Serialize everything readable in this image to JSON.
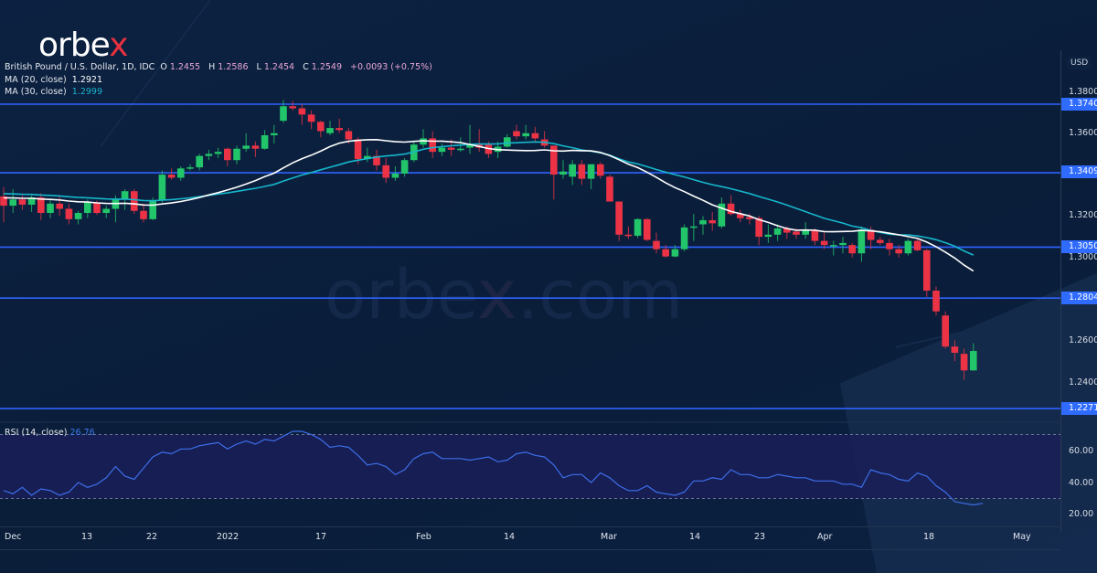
{
  "brand": {
    "logo_text_main": "orbe",
    "logo_text_accent": "x",
    "watermark": "orbex.com",
    "accent_color": "#e8313f"
  },
  "header": {
    "symbol": "British Pound / U.S. Dollar, 1D, IDC",
    "open_label": "O",
    "open": "1.2455",
    "high_label": "H",
    "high": "1.2586",
    "low_label": "L",
    "low": "1.2454",
    "close_label": "C",
    "close": "1.2549",
    "change": "+0.0093 (+0.75%)"
  },
  "indicators": {
    "ma20": {
      "label": "MA (20, close)",
      "value": "1.2921",
      "color": "#ffffff"
    },
    "ma30": {
      "label": "MA (30, close)",
      "value": "1.2999",
      "color": "#16b6cc"
    },
    "rsi": {
      "label": "RSI (14, close)",
      "value": "26.76",
      "color": "#3c6ee8"
    }
  },
  "price_axis": {
    "currency": "USD",
    "ticks": [
      "1.3800",
      "1.3600",
      "1.3200",
      "1.3000",
      "1.2600",
      "1.2400"
    ],
    "level_tags": [
      "1.3740",
      "1.3409",
      "1.3050",
      "1.2804",
      "1.2271"
    ]
  },
  "rsi_axis": {
    "ticks": [
      "60.00",
      "40.00",
      "20.00"
    ]
  },
  "time_axis": {
    "labels": [
      "Dec",
      "13",
      "22",
      "2022",
      "17",
      "Feb",
      "14",
      "Mar",
      "14",
      "23",
      "Apr",
      "18",
      "May"
    ]
  },
  "chart_data": {
    "type": "candlestick",
    "title": "British Pound / U.S. Dollar, 1D, IDC",
    "ylabel": "USD",
    "ylim": [
      1.215,
      1.39
    ],
    "horizontal_levels": [
      1.374,
      1.3409,
      1.305,
      1.2804,
      1.2271
    ],
    "x_labels": [
      "Dec",
      "13",
      "22",
      "2022",
      "17",
      "Feb",
      "14",
      "Mar",
      "14",
      "23",
      "Apr",
      "18",
      "May"
    ],
    "candles": [
      [
        1.3295,
        1.334,
        1.317,
        1.325
      ],
      [
        1.325,
        1.333,
        1.3215,
        1.328
      ],
      [
        1.328,
        1.33,
        1.323,
        1.3255
      ],
      [
        1.3255,
        1.33,
        1.322,
        1.329
      ],
      [
        1.329,
        1.331,
        1.318,
        1.3215
      ],
      [
        1.3215,
        1.328,
        1.319,
        1.326
      ],
      [
        1.326,
        1.3295,
        1.32,
        1.3235
      ],
      [
        1.3235,
        1.326,
        1.316,
        1.3185
      ],
      [
        1.3185,
        1.3225,
        1.316,
        1.3215
      ],
      [
        1.3215,
        1.328,
        1.319,
        1.3265
      ],
      [
        1.3265,
        1.3275,
        1.3205,
        1.3215
      ],
      [
        1.3215,
        1.325,
        1.319,
        1.3235
      ],
      [
        1.3235,
        1.33,
        1.317,
        1.328
      ],
      [
        1.328,
        1.333,
        1.323,
        1.332
      ],
      [
        1.332,
        1.333,
        1.321,
        1.3225
      ],
      [
        1.3225,
        1.326,
        1.317,
        1.3185
      ],
      [
        1.3185,
        1.329,
        1.318,
        1.3275
      ],
      [
        1.3275,
        1.342,
        1.3265,
        1.34
      ],
      [
        1.34,
        1.343,
        1.3375,
        1.3385
      ],
      [
        1.3385,
        1.344,
        1.337,
        1.343
      ],
      [
        1.343,
        1.345,
        1.342,
        1.3435
      ],
      [
        1.3435,
        1.35,
        1.342,
        1.349
      ],
      [
        1.349,
        1.352,
        1.347,
        1.35
      ],
      [
        1.35,
        1.353,
        1.348,
        1.351
      ],
      [
        1.3525,
        1.353,
        1.344,
        1.347
      ],
      [
        1.347,
        1.354,
        1.345,
        1.3525
      ],
      [
        1.3525,
        1.36,
        1.351,
        1.354
      ],
      [
        1.354,
        1.356,
        1.3485,
        1.3525
      ],
      [
        1.3525,
        1.3615,
        1.352,
        1.359
      ],
      [
        1.359,
        1.364,
        1.355,
        1.36
      ],
      [
        1.366,
        1.376,
        1.365,
        1.373
      ],
      [
        1.373,
        1.3755,
        1.371,
        1.372
      ],
      [
        1.372,
        1.374,
        1.364,
        1.369
      ],
      [
        1.369,
        1.371,
        1.362,
        1.3655
      ],
      [
        1.3655,
        1.366,
        1.358,
        1.361
      ],
      [
        1.36,
        1.366,
        1.359,
        1.3625
      ],
      [
        1.3625,
        1.367,
        1.36,
        1.3615
      ],
      [
        1.361,
        1.3625,
        1.355,
        1.357
      ],
      [
        1.357,
        1.358,
        1.345,
        1.3475
      ],
      [
        1.3475,
        1.353,
        1.346,
        1.349
      ],
      [
        1.349,
        1.352,
        1.342,
        1.3445
      ],
      [
        1.3445,
        1.348,
        1.336,
        1.3385
      ],
      [
        1.3385,
        1.344,
        1.337,
        1.3405
      ],
      [
        1.3405,
        1.348,
        1.339,
        1.347
      ],
      [
        1.347,
        1.356,
        1.346,
        1.3545
      ],
      [
        1.3545,
        1.362,
        1.353,
        1.3575
      ],
      [
        1.3575,
        1.361,
        1.348,
        1.351
      ],
      [
        1.351,
        1.355,
        1.349,
        1.353
      ],
      [
        1.353,
        1.357,
        1.349,
        1.352
      ],
      [
        1.352,
        1.358,
        1.351,
        1.3525
      ],
      [
        1.353,
        1.364,
        1.35,
        1.3545
      ],
      [
        1.3545,
        1.362,
        1.351,
        1.353
      ],
      [
        1.3545,
        1.356,
        1.348,
        1.35
      ],
      [
        1.351,
        1.356,
        1.348,
        1.3535
      ],
      [
        1.3535,
        1.3595,
        1.353,
        1.358
      ],
      [
        1.361,
        1.364,
        1.357,
        1.3585
      ],
      [
        1.3585,
        1.364,
        1.357,
        1.36
      ],
      [
        1.36,
        1.363,
        1.356,
        1.3575
      ],
      [
        1.357,
        1.361,
        1.353,
        1.354
      ],
      [
        1.354,
        1.354,
        1.328,
        1.34
      ],
      [
        1.34,
        1.347,
        1.338,
        1.3415
      ],
      [
        1.339,
        1.347,
        1.335,
        1.345
      ],
      [
        1.345,
        1.347,
        1.335,
        1.338
      ],
      [
        1.338,
        1.345,
        1.333,
        1.345
      ],
      [
        1.345,
        1.346,
        1.338,
        1.3395
      ],
      [
        1.339,
        1.34,
        1.327,
        1.327
      ],
      [
        1.327,
        1.327,
        1.308,
        1.311
      ],
      [
        1.311,
        1.315,
        1.309,
        1.3105
      ],
      [
        1.3105,
        1.319,
        1.3095,
        1.3185
      ],
      [
        1.3185,
        1.319,
        1.308,
        1.3085
      ],
      [
        1.308,
        1.312,
        1.302,
        1.304
      ],
      [
        1.304,
        1.306,
        1.3,
        1.3005
      ],
      [
        1.3005,
        1.306,
        1.3,
        1.304
      ],
      [
        1.304,
        1.316,
        1.303,
        1.3145
      ],
      [
        1.315,
        1.321,
        1.308,
        1.315
      ],
      [
        1.316,
        1.32,
        1.311,
        1.318
      ],
      [
        1.318,
        1.322,
        1.313,
        1.3165
      ],
      [
        1.315,
        1.329,
        1.314,
        1.326
      ],
      [
        1.326,
        1.33,
        1.32,
        1.321
      ],
      [
        1.321,
        1.323,
        1.317,
        1.319
      ],
      [
        1.3195,
        1.321,
        1.316,
        1.3185
      ],
      [
        1.319,
        1.32,
        1.306,
        1.31
      ],
      [
        1.31,
        1.316,
        1.307,
        1.311
      ],
      [
        1.311,
        1.316,
        1.308,
        1.314
      ],
      [
        1.314,
        1.315,
        1.309,
        1.312
      ],
      [
        1.3125,
        1.314,
        1.309,
        1.311
      ],
      [
        1.311,
        1.317,
        1.309,
        1.313
      ],
      [
        1.313,
        1.314,
        1.306,
        1.308
      ],
      [
        1.308,
        1.312,
        1.304,
        1.306
      ],
      [
        1.306,
        1.308,
        1.301,
        1.306
      ],
      [
        1.306,
        1.31,
        1.302,
        1.307
      ],
      [
        1.306,
        1.307,
        1.3,
        1.302
      ],
      [
        1.302,
        1.315,
        1.298,
        1.3135
      ],
      [
        1.3135,
        1.315,
        1.304,
        1.3085
      ],
      [
        1.3085,
        1.31,
        1.306,
        1.307
      ],
      [
        1.307,
        1.309,
        1.301,
        1.304
      ],
      [
        1.304,
        1.306,
        1.3,
        1.302
      ],
      [
        1.302,
        1.309,
        1.301,
        1.308
      ],
      [
        1.308,
        1.309,
        1.303,
        1.3035
      ],
      [
        1.3035,
        1.304,
        1.281,
        1.284
      ],
      [
        1.284,
        1.286,
        1.272,
        1.274
      ],
      [
        1.272,
        1.274,
        1.256,
        1.257
      ],
      [
        1.257,
        1.26,
        1.25,
        1.254
      ],
      [
        1.2535,
        1.256,
        1.241,
        1.2455
      ],
      [
        1.2455,
        1.2586,
        1.2454,
        1.2549
      ]
    ],
    "series": [
      {
        "name": "MA (20, close)",
        "color": "#ffffff"
      },
      {
        "name": "MA (30, close)",
        "color": "#16b6cc"
      },
      {
        "name": "RSI (14, close)",
        "color": "#3c6ee8",
        "ylim": [
          10,
          80
        ],
        "bands": [
          30,
          70
        ],
        "values": [
          35,
          33,
          37,
          32,
          36,
          35,
          32,
          34,
          40,
          37,
          39,
          43,
          50,
          44,
          42,
          49,
          56,
          59,
          58,
          61,
          61,
          63,
          64,
          65,
          61,
          64,
          66,
          64,
          67,
          66,
          69,
          72,
          72,
          70,
          67,
          62,
          63,
          62,
          57,
          51,
          52,
          50,
          45,
          48,
          55,
          58,
          59,
          55,
          55,
          55,
          54,
          55,
          56,
          53,
          54,
          58,
          59,
          57,
          56,
          51,
          43,
          45,
          45,
          40,
          46,
          43,
          38,
          35,
          35,
          38,
          34,
          33,
          32,
          34,
          41,
          41,
          43,
          42,
          48,
          45,
          45,
          43,
          43,
          45,
          44,
          43,
          43,
          41,
          41,
          41,
          39,
          39,
          37,
          48,
          46,
          45,
          42,
          41,
          46,
          44,
          38,
          34,
          28,
          27,
          26,
          27
        ]
      }
    ]
  }
}
